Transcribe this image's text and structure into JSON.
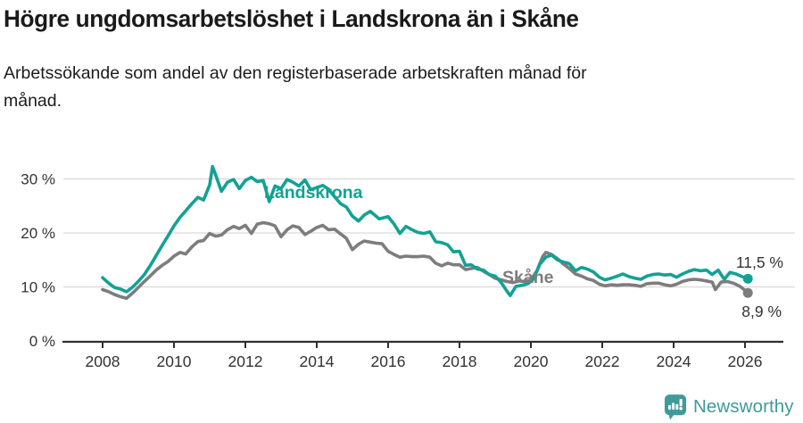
{
  "colors": {
    "accent_teal": "#12a294",
    "series_gray": "#7d7d7d",
    "gridline": "#d9d9d9",
    "axis": "#2f2f2f",
    "axis_text": "#333333",
    "value_label_text": "#333333",
    "title_text": "#1a1a1a",
    "logo_teal": "#3e9b99",
    "background": "#ffffff"
  },
  "chart_data": {
    "type": "line",
    "title": "Högre ungdomsarbetslöshet i Landskrona än i Skåne",
    "subtitle_lines": [
      "Arbetssökande som andel av den registerbaserade arbetskraften månad för",
      "månad."
    ],
    "unit": "%",
    "xlabel": "",
    "ylabel": "",
    "xlim": [
      2008,
      2026.2
    ],
    "ylim": [
      0,
      33
    ],
    "grid": "horizontal",
    "legend_position": "inline-series-labels",
    "x_ticks": [
      "2008",
      "2010",
      "2012",
      "2014",
      "2016",
      "2018",
      "2020",
      "2022",
      "2024",
      "2026"
    ],
    "y_ticks": [
      {
        "value": 0,
        "label": "0 %"
      },
      {
        "value": 10,
        "label": "10 %"
      },
      {
        "value": 20,
        "label": "20 %"
      },
      {
        "value": 30,
        "label": "30 %"
      }
    ],
    "series": [
      {
        "name": "Landskrona",
        "slug": "landskrona",
        "color": "#12a294",
        "end_value_label": "11,5 %",
        "end_value": 11.5,
        "points": [
          [
            2008.0,
            11.7
          ],
          [
            2008.17,
            10.7
          ],
          [
            2008.33,
            9.9
          ],
          [
            2008.5,
            9.6
          ],
          [
            2008.67,
            9.1
          ],
          [
            2008.83,
            9.9
          ],
          [
            2009.0,
            11.0
          ],
          [
            2009.17,
            12.3
          ],
          [
            2009.33,
            13.9
          ],
          [
            2009.5,
            15.8
          ],
          [
            2009.67,
            17.7
          ],
          [
            2009.83,
            19.4
          ],
          [
            2010.0,
            21.3
          ],
          [
            2010.17,
            22.9
          ],
          [
            2010.33,
            24.1
          ],
          [
            2010.5,
            25.4
          ],
          [
            2010.67,
            26.6
          ],
          [
            2010.83,
            26.1
          ],
          [
            2011.0,
            28.9
          ],
          [
            2011.08,
            32.3
          ],
          [
            2011.17,
            30.7
          ],
          [
            2011.33,
            27.7
          ],
          [
            2011.5,
            29.4
          ],
          [
            2011.67,
            29.9
          ],
          [
            2011.83,
            28.2
          ],
          [
            2012.0,
            29.7
          ],
          [
            2012.17,
            30.3
          ],
          [
            2012.33,
            29.5
          ],
          [
            2012.5,
            29.7
          ],
          [
            2012.67,
            25.8
          ],
          [
            2012.83,
            28.7
          ],
          [
            2013.0,
            28.2
          ],
          [
            2013.17,
            29.9
          ],
          [
            2013.33,
            29.4
          ],
          [
            2013.5,
            28.7
          ],
          [
            2013.67,
            29.8
          ],
          [
            2013.83,
            28.0
          ],
          [
            2014.0,
            28.4
          ],
          [
            2014.17,
            28.8
          ],
          [
            2014.33,
            28.1
          ],
          [
            2014.5,
            26.7
          ],
          [
            2014.67,
            25.4
          ],
          [
            2014.83,
            24.8
          ],
          [
            2015.0,
            23.1
          ],
          [
            2015.17,
            22.2
          ],
          [
            2015.33,
            23.3
          ],
          [
            2015.5,
            24.0
          ],
          [
            2015.75,
            22.6
          ],
          [
            2016.0,
            23.0
          ],
          [
            2016.17,
            21.6
          ],
          [
            2016.33,
            19.9
          ],
          [
            2016.5,
            21.2
          ],
          [
            2016.67,
            20.6
          ],
          [
            2016.83,
            20.1
          ],
          [
            2017.0,
            19.9
          ],
          [
            2017.17,
            20.2
          ],
          [
            2017.33,
            18.4
          ],
          [
            2017.5,
            18.2
          ],
          [
            2017.67,
            17.8
          ],
          [
            2017.83,
            16.5
          ],
          [
            2018.0,
            16.6
          ],
          [
            2018.17,
            14.0
          ],
          [
            2018.33,
            14.1
          ],
          [
            2018.5,
            13.3
          ],
          [
            2018.67,
            13.1
          ],
          [
            2018.83,
            12.3
          ],
          [
            2019.0,
            12.0
          ],
          [
            2019.17,
            10.8
          ],
          [
            2019.33,
            9.2
          ],
          [
            2019.42,
            8.4
          ],
          [
            2019.58,
            10.1
          ],
          [
            2019.75,
            10.3
          ],
          [
            2019.92,
            10.6
          ],
          [
            2020.08,
            11.5
          ],
          [
            2020.25,
            14.2
          ],
          [
            2020.42,
            15.5
          ],
          [
            2020.58,
            15.9
          ],
          [
            2020.75,
            15.0
          ],
          [
            2020.92,
            14.6
          ],
          [
            2021.08,
            14.3
          ],
          [
            2021.25,
            13.0
          ],
          [
            2021.42,
            13.6
          ],
          [
            2021.58,
            13.3
          ],
          [
            2021.75,
            12.8
          ],
          [
            2021.92,
            11.8
          ],
          [
            2022.08,
            11.3
          ],
          [
            2022.25,
            11.6
          ],
          [
            2022.42,
            12.0
          ],
          [
            2022.58,
            12.4
          ],
          [
            2022.75,
            11.9
          ],
          [
            2022.92,
            11.6
          ],
          [
            2023.08,
            11.4
          ],
          [
            2023.25,
            12.0
          ],
          [
            2023.42,
            12.3
          ],
          [
            2023.58,
            12.4
          ],
          [
            2023.75,
            12.2
          ],
          [
            2023.92,
            12.3
          ],
          [
            2024.08,
            11.8
          ],
          [
            2024.25,
            12.4
          ],
          [
            2024.42,
            12.9
          ],
          [
            2024.58,
            13.2
          ],
          [
            2024.75,
            13.0
          ],
          [
            2024.92,
            13.1
          ],
          [
            2025.08,
            12.3
          ],
          [
            2025.25,
            13.1
          ],
          [
            2025.42,
            11.4
          ],
          [
            2025.58,
            12.7
          ],
          [
            2025.75,
            12.4
          ],
          [
            2025.92,
            11.9
          ],
          [
            2026.08,
            11.5
          ]
        ]
      },
      {
        "name": "Skåne",
        "slug": "skane",
        "color": "#7d7d7d",
        "end_value_label": "8,9 %",
        "end_value": 8.9,
        "points": [
          [
            2008.0,
            9.5
          ],
          [
            2008.17,
            9.1
          ],
          [
            2008.33,
            8.6
          ],
          [
            2008.5,
            8.2
          ],
          [
            2008.67,
            7.9
          ],
          [
            2008.83,
            8.8
          ],
          [
            2009.0,
            9.9
          ],
          [
            2009.17,
            11.0
          ],
          [
            2009.33,
            12.0
          ],
          [
            2009.5,
            13.1
          ],
          [
            2009.67,
            14.0
          ],
          [
            2009.83,
            14.7
          ],
          [
            2010.0,
            15.7
          ],
          [
            2010.17,
            16.4
          ],
          [
            2010.33,
            16.1
          ],
          [
            2010.5,
            17.4
          ],
          [
            2010.67,
            18.4
          ],
          [
            2010.83,
            18.6
          ],
          [
            2011.0,
            19.9
          ],
          [
            2011.17,
            19.4
          ],
          [
            2011.33,
            19.6
          ],
          [
            2011.5,
            20.6
          ],
          [
            2011.67,
            21.2
          ],
          [
            2011.83,
            20.8
          ],
          [
            2012.0,
            21.4
          ],
          [
            2012.17,
            19.9
          ],
          [
            2012.33,
            21.6
          ],
          [
            2012.5,
            21.9
          ],
          [
            2012.67,
            21.7
          ],
          [
            2012.83,
            21.3
          ],
          [
            2013.0,
            19.3
          ],
          [
            2013.17,
            20.6
          ],
          [
            2013.33,
            21.3
          ],
          [
            2013.5,
            21.0
          ],
          [
            2013.67,
            19.7
          ],
          [
            2013.83,
            20.3
          ],
          [
            2014.0,
            21.0
          ],
          [
            2014.17,
            21.4
          ],
          [
            2014.33,
            20.6
          ],
          [
            2014.5,
            20.7
          ],
          [
            2014.67,
            19.8
          ],
          [
            2014.83,
            19.0
          ],
          [
            2015.0,
            16.9
          ],
          [
            2015.17,
            17.9
          ],
          [
            2015.33,
            18.5
          ],
          [
            2015.5,
            18.3
          ],
          [
            2015.67,
            18.1
          ],
          [
            2015.83,
            18.0
          ],
          [
            2016.0,
            16.6
          ],
          [
            2016.17,
            16.0
          ],
          [
            2016.33,
            15.5
          ],
          [
            2016.5,
            15.7
          ],
          [
            2016.67,
            15.6
          ],
          [
            2016.83,
            15.6
          ],
          [
            2017.0,
            15.7
          ],
          [
            2017.17,
            15.5
          ],
          [
            2017.33,
            14.4
          ],
          [
            2017.5,
            13.9
          ],
          [
            2017.67,
            14.4
          ],
          [
            2017.83,
            14.1
          ],
          [
            2018.0,
            14.1
          ],
          [
            2018.17,
            13.2
          ],
          [
            2018.33,
            13.4
          ],
          [
            2018.5,
            13.6
          ],
          [
            2018.67,
            12.9
          ],
          [
            2018.83,
            12.3
          ],
          [
            2019.0,
            11.6
          ],
          [
            2019.17,
            11.3
          ],
          [
            2019.33,
            11.0
          ],
          [
            2019.5,
            10.8
          ],
          [
            2019.67,
            11.1
          ],
          [
            2019.83,
            11.0
          ],
          [
            2020.0,
            11.3
          ],
          [
            2020.17,
            13.0
          ],
          [
            2020.33,
            15.6
          ],
          [
            2020.42,
            16.4
          ],
          [
            2020.58,
            16.0
          ],
          [
            2020.75,
            15.2
          ],
          [
            2020.92,
            14.2
          ],
          [
            2021.08,
            13.4
          ],
          [
            2021.25,
            12.4
          ],
          [
            2021.42,
            12.0
          ],
          [
            2021.58,
            11.5
          ],
          [
            2021.75,
            11.2
          ],
          [
            2021.92,
            10.5
          ],
          [
            2022.08,
            10.2
          ],
          [
            2022.25,
            10.4
          ],
          [
            2022.42,
            10.3
          ],
          [
            2022.58,
            10.4
          ],
          [
            2022.75,
            10.4
          ],
          [
            2022.92,
            10.3
          ],
          [
            2023.08,
            10.1
          ],
          [
            2023.25,
            10.6
          ],
          [
            2023.42,
            10.7
          ],
          [
            2023.58,
            10.7
          ],
          [
            2023.75,
            10.4
          ],
          [
            2023.92,
            10.2
          ],
          [
            2024.08,
            10.5
          ],
          [
            2024.25,
            11.0
          ],
          [
            2024.42,
            11.3
          ],
          [
            2024.58,
            11.4
          ],
          [
            2024.75,
            11.3
          ],
          [
            2024.92,
            11.1
          ],
          [
            2025.08,
            10.9
          ],
          [
            2025.17,
            9.5
          ],
          [
            2025.33,
            10.9
          ],
          [
            2025.5,
            11.0
          ],
          [
            2025.67,
            10.7
          ],
          [
            2025.83,
            10.2
          ],
          [
            2025.92,
            9.8
          ],
          [
            2026.08,
            8.9
          ]
        ]
      }
    ]
  },
  "footer": {
    "brand": "Newsworthy",
    "logo_icon": "bar-chart-speech-bubble-icon"
  }
}
